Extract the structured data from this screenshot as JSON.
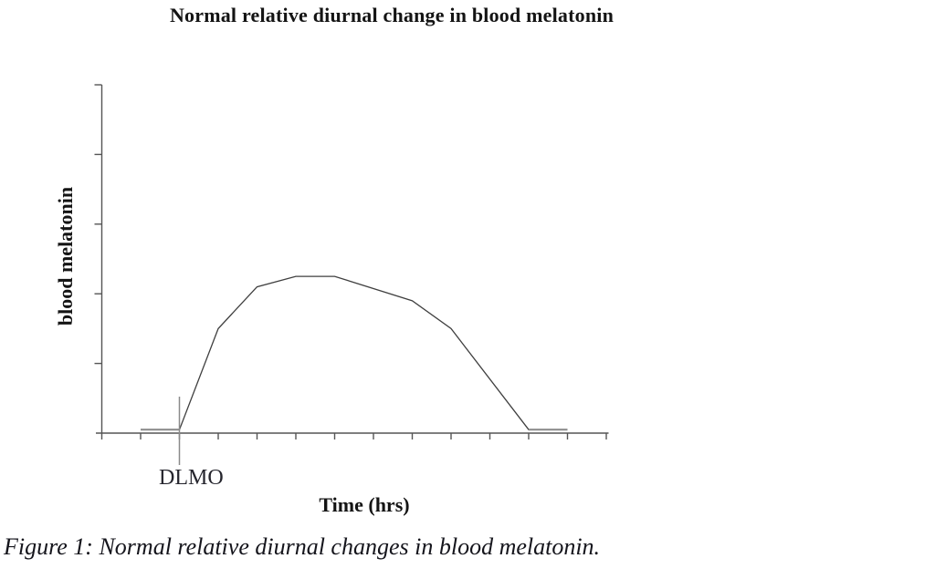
{
  "figure": {
    "caption": "Figure 1: Normal relative diurnal changes in blood melatonin."
  },
  "chart_data": {
    "type": "line",
    "title": "Normal relative diurnal change in blood melatonin",
    "xlabel": "Time (hrs)",
    "ylabel": "blood melatonin",
    "grid": false,
    "legend": false,
    "x_axis": {
      "tick_count": 13,
      "tick_labels_visible": false,
      "range_hours": [
        0,
        13
      ]
    },
    "y_axis": {
      "tick_count": 5,
      "tick_labels_visible": false,
      "range_relative": [
        0,
        1
      ]
    },
    "annotations": [
      {
        "label": "DLMO",
        "x": 2,
        "y": 0,
        "marker": "vertical-line"
      }
    ],
    "series": [
      {
        "name": "blood melatonin (relative level)",
        "x": [
          1,
          2,
          3,
          4,
          5,
          6,
          8,
          9,
          11,
          12
        ],
        "y": [
          0.01,
          0.01,
          0.3,
          0.42,
          0.45,
          0.45,
          0.38,
          0.3,
          0.01,
          0.01
        ],
        "baseline_segments_hours": [
          [
            1,
            2
          ],
          [
            11,
            12
          ]
        ]
      }
    ],
    "colors": {
      "axis": "#555555",
      "curve": "#3f3f3f",
      "baseline_segment": "#8e8e8e",
      "dlmo_marker": "#8a8a8a",
      "text": "#141414"
    }
  }
}
